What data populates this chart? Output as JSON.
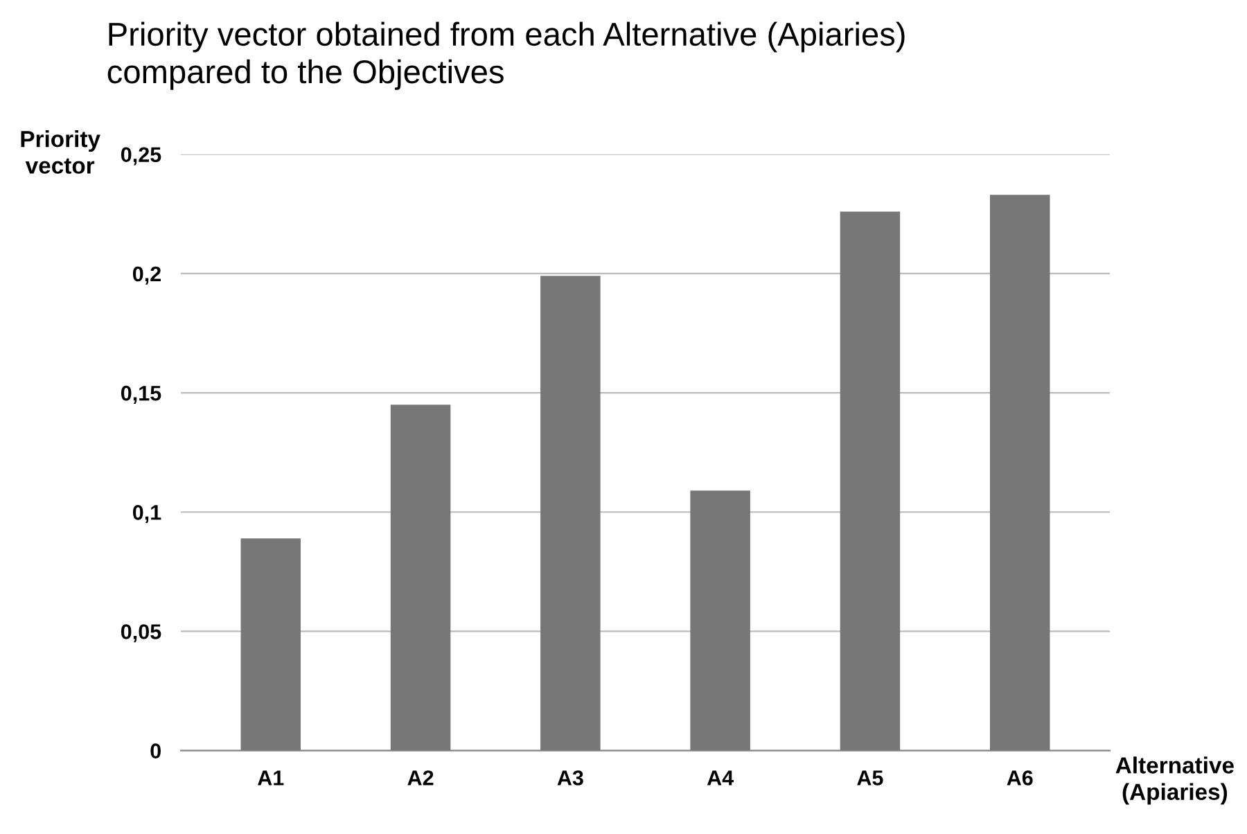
{
  "chart_data": {
    "type": "bar",
    "title": "Priority vector obtained from each Alternative (Apiaries)\ncompared to the Objectives",
    "xlabel": "Alternative\n(Apiaries)",
    "ylabel": "Priority\nvector",
    "categories": [
      "A1",
      "A2",
      "A3",
      "A4",
      "A5",
      "A6"
    ],
    "values": [
      0.089,
      0.145,
      0.199,
      0.109,
      0.226,
      0.233
    ],
    "color": "#777777",
    "ylim": [
      0,
      0.25
    ],
    "yticks": [
      {
        "value": 0,
        "label": "0"
      },
      {
        "value": 0.05,
        "label": "0,05"
      },
      {
        "value": 0.1,
        "label": "0,1"
      },
      {
        "value": 0.15,
        "label": "0,15"
      },
      {
        "value": 0.2,
        "label": "0,2"
      },
      {
        "value": 0.25,
        "label": "0,25"
      }
    ],
    "grid": "y"
  }
}
